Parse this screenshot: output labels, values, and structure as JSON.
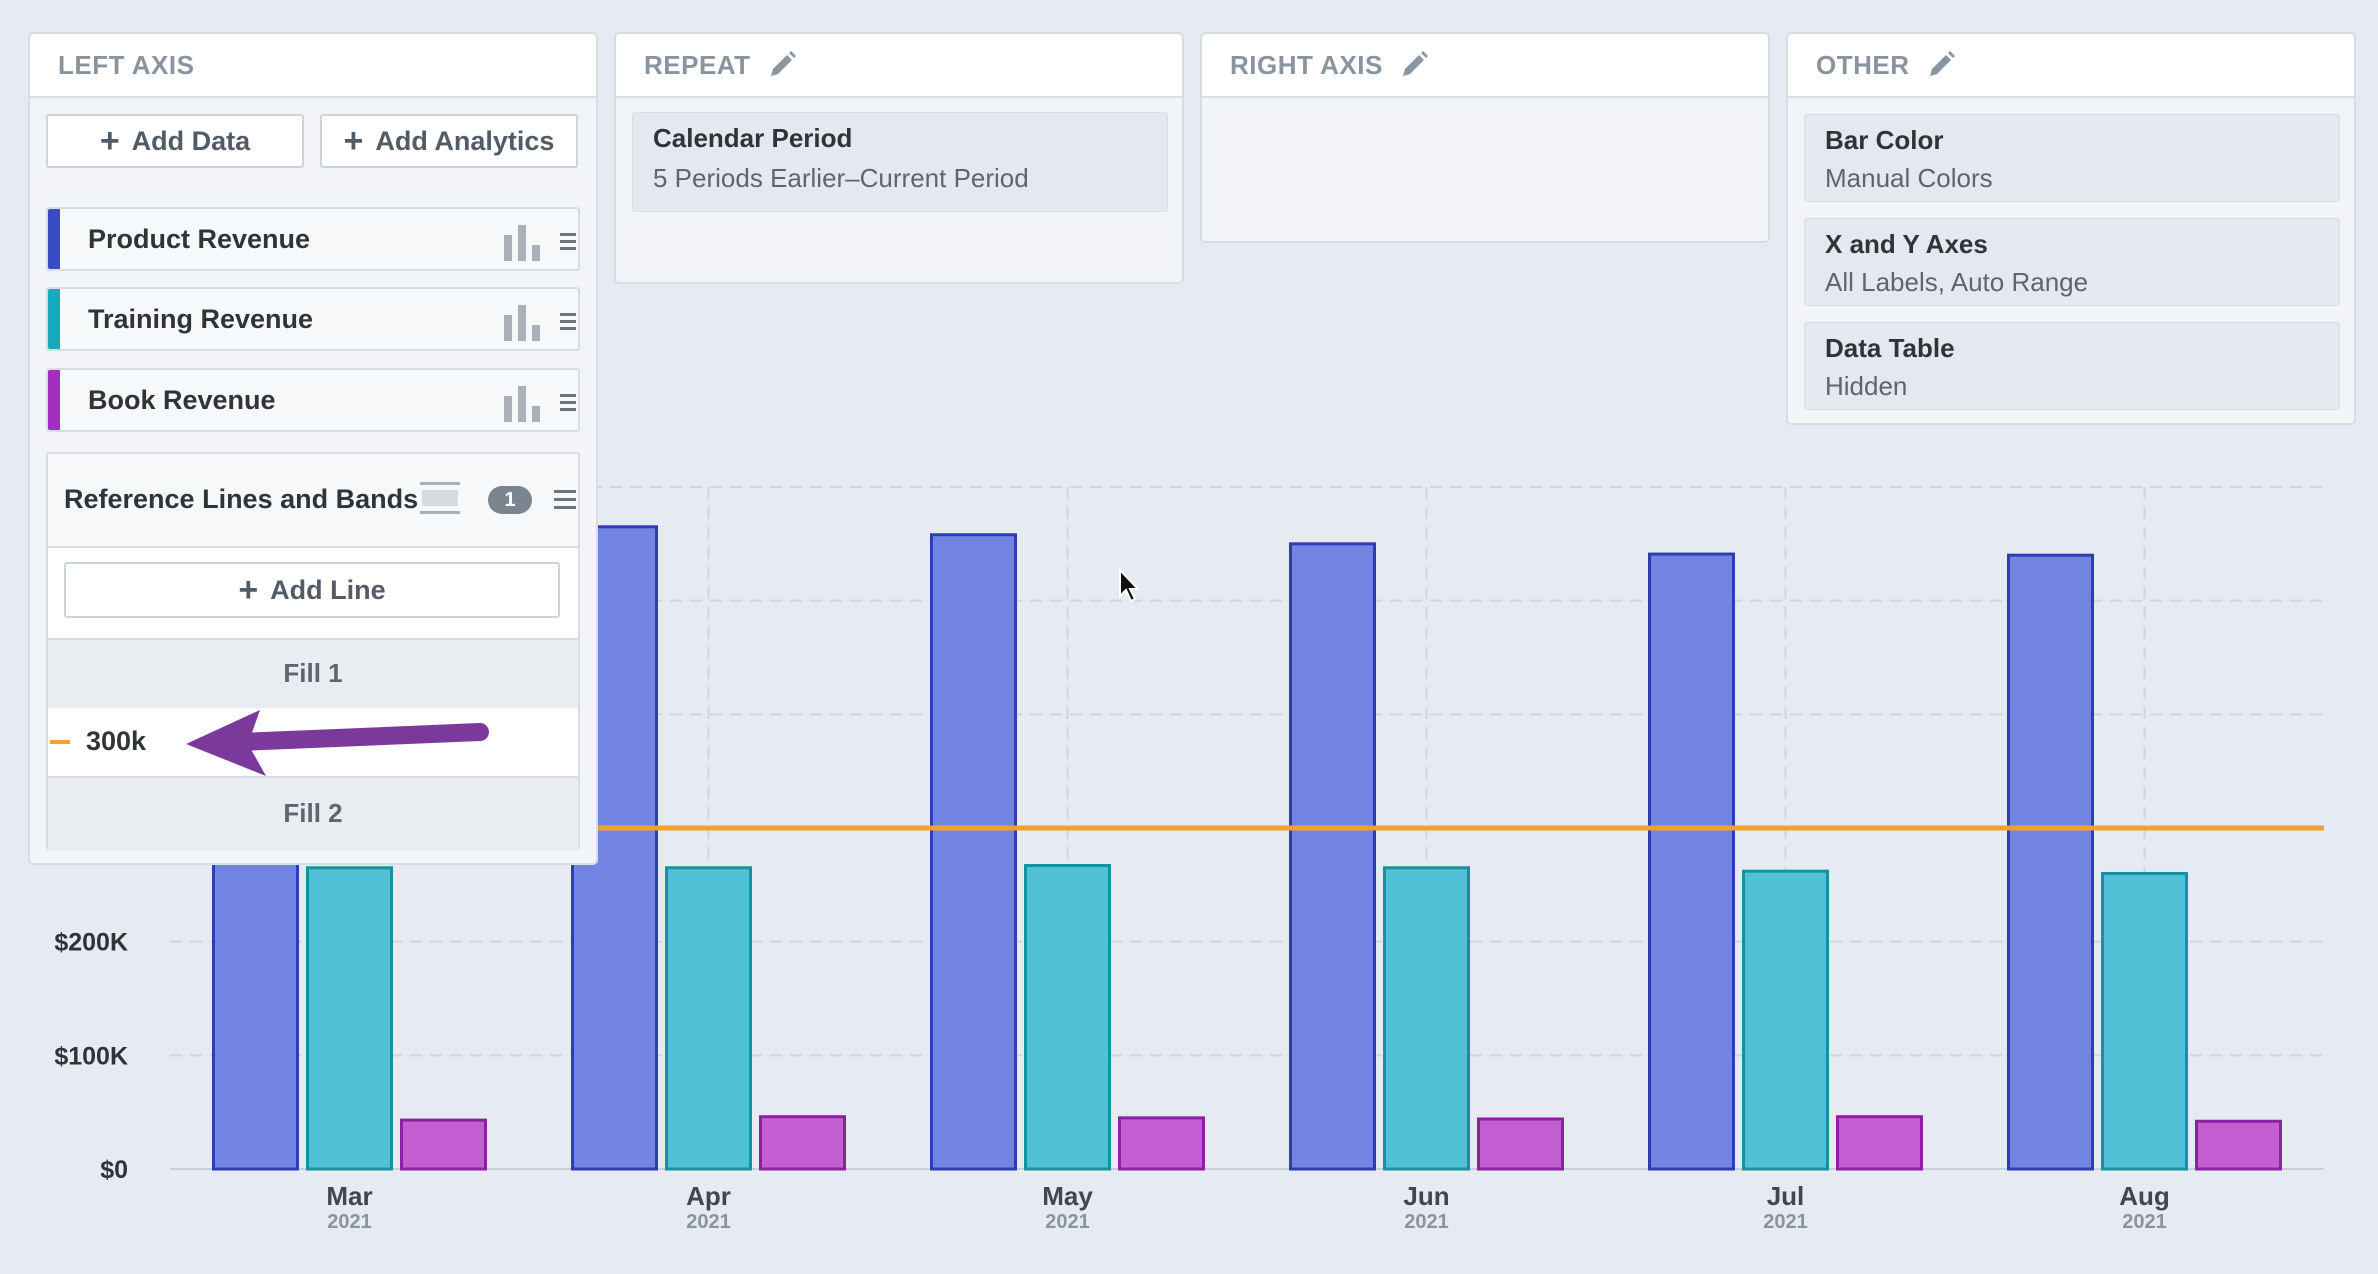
{
  "panels": {
    "left_axis": {
      "title": "LEFT AXIS",
      "add_data_label": "Add Data",
      "add_analytics_label": "Add Analytics",
      "series": [
        {
          "label": "Product Revenue",
          "color": "#3a4cc4"
        },
        {
          "label": "Training Revenue",
          "color": "#17a9be"
        },
        {
          "label": "Book Revenue",
          "color": "#a52dbf"
        }
      ],
      "reference": {
        "title": "Reference Lines and Bands",
        "count": "1",
        "add_line_label": "Add Line",
        "fill1": "Fill 1",
        "line_value": "300k",
        "fill2": "Fill 2",
        "line_color": "#f0a22e"
      }
    },
    "repeat": {
      "title": "REPEAT",
      "card_title": "Calendar Period",
      "card_value": "5 Periods Earlier–Current Period"
    },
    "right_axis": {
      "title": "RIGHT AXIS"
    },
    "other": {
      "title": "OTHER",
      "cards": [
        {
          "title": "Bar Color",
          "value": "Manual Colors"
        },
        {
          "title": "X and Y Axes",
          "value": "All Labels, Auto Range"
        },
        {
          "title": "Data Table",
          "value": "Hidden"
        }
      ]
    }
  },
  "chart_data": {
    "type": "bar",
    "categories": [
      "Mar",
      "Apr",
      "May",
      "Jun",
      "Jul",
      "Aug"
    ],
    "category_sublabels": [
      "2021",
      "2021",
      "2021",
      "2021",
      "2021",
      "2021"
    ],
    "series": [
      {
        "values": [
          565000,
          565000,
          558000,
          550000,
          541000,
          540000
        ],
        "color": "#7285e3",
        "stroke": "#2e3db5"
      },
      {
        "values": [
          265000,
          265000,
          267000,
          265000,
          262000,
          260000
        ],
        "color": "#50c1d6",
        "stroke": "#13929f"
      },
      {
        "values": [
          43000,
          46000,
          45000,
          44000,
          46000,
          42000
        ],
        "color": "#c260d2",
        "stroke": "#8e1ea4"
      }
    ],
    "ylim": [
      0,
      600000
    ],
    "yticks": [
      {
        "v": 0,
        "label": "$0"
      },
      {
        "v": 100000,
        "label": "$100K"
      },
      {
        "v": 200000,
        "label": "$200K"
      }
    ],
    "gridlines": [
      0,
      100000,
      200000,
      300000,
      400000,
      500000,
      600000
    ],
    "reference_line": {
      "value": 300000,
      "color": "#f0a22e"
    },
    "grid": true
  }
}
